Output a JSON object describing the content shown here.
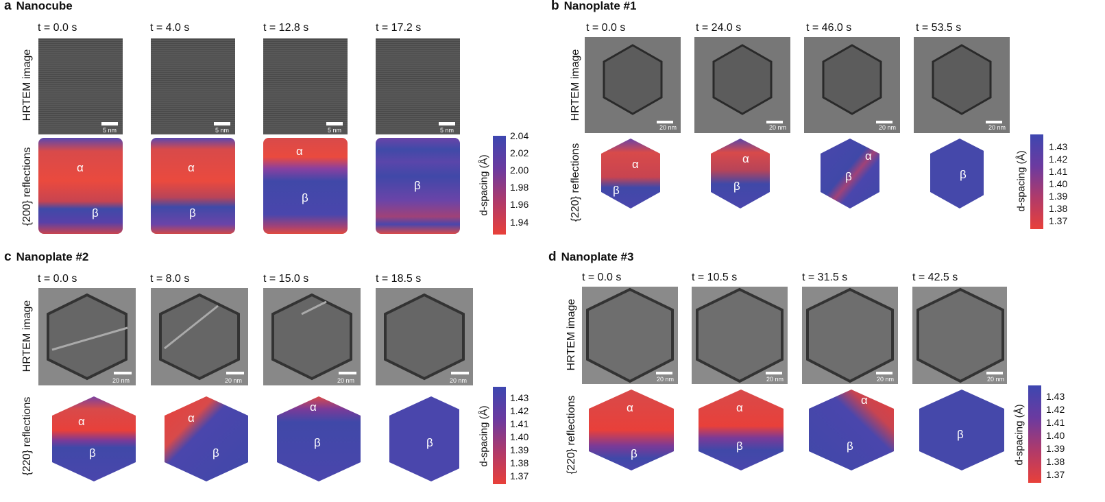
{
  "panels": {
    "a": {
      "letter": "a",
      "title": "Nanocube",
      "times": [
        "t = 0.0 s",
        "t = 4.0 s",
        "t = 12.8 s",
        "t = 17.2 s"
      ],
      "row1": "HRTEM image",
      "row2": "{200} reflections",
      "scale_bar": "5 nm",
      "phase_labels": [
        [
          "α",
          "β"
        ],
        [
          "α",
          "β"
        ],
        [
          "α",
          "β"
        ],
        [
          "β"
        ]
      ],
      "colorbar": {
        "label": "d-spacing (Å)",
        "ticks": [
          "2.04",
          "2.02",
          "2.00",
          "1.98",
          "1.96",
          "1.94"
        ]
      }
    },
    "b": {
      "letter": "b",
      "title": "Nanoplate #1",
      "times": [
        "t = 0.0 s",
        "t = 24.0 s",
        "t = 46.0 s",
        "t = 53.5 s"
      ],
      "row1": "HRTEM image",
      "row2": "{220} reflections",
      "scale_bar": "20 nm",
      "phase_labels": [
        [
          "α",
          "β"
        ],
        [
          "α",
          "β"
        ],
        [
          "α",
          "β"
        ],
        [
          "β"
        ]
      ],
      "colorbar": {
        "label": "d-spacing (Å)",
        "ticks": [
          "1.43",
          "1.42",
          "1.41",
          "1.40",
          "1.39",
          "1.38",
          "1.37"
        ]
      }
    },
    "c": {
      "letter": "c",
      "title": "Nanoplate #2",
      "times": [
        "t = 0.0 s",
        "t = 8.0 s",
        "t = 15.0 s",
        "t = 18.5 s"
      ],
      "row1": "HRTEM image",
      "row2": "{220} reflections",
      "scale_bar": "20 nm",
      "phase_labels": [
        [
          "α",
          "β"
        ],
        [
          "α",
          "β"
        ],
        [
          "α",
          "β"
        ],
        [
          "β"
        ]
      ],
      "colorbar": {
        "label": "d-spacing (Å)",
        "ticks": [
          "1.43",
          "1.42",
          "1.41",
          "1.40",
          "1.39",
          "1.38",
          "1.37"
        ]
      }
    },
    "d": {
      "letter": "d",
      "title": "Nanoplate #3",
      "times": [
        "t = 0.0 s",
        "t = 10.5 s",
        "t = 31.5 s",
        "t = 42.5 s"
      ],
      "row1": "HRTEM image",
      "row2": "{220} reflections",
      "scale_bar": "20 nm",
      "phase_labels": [
        [
          "α",
          "β"
        ],
        [
          "α",
          "β"
        ],
        [
          "α",
          "β"
        ],
        [
          "β"
        ]
      ],
      "colorbar": {
        "label": "d-spacing (Å)",
        "ticks": [
          "1.43",
          "1.42",
          "1.41",
          "1.40",
          "1.39",
          "1.38",
          "1.37"
        ]
      }
    }
  },
  "colors": {
    "alpha_red": "#e8403a",
    "beta_blue": "#3f48a8",
    "purple_mid": "#7a3a98",
    "tem_gray": "#6e6e6e"
  }
}
